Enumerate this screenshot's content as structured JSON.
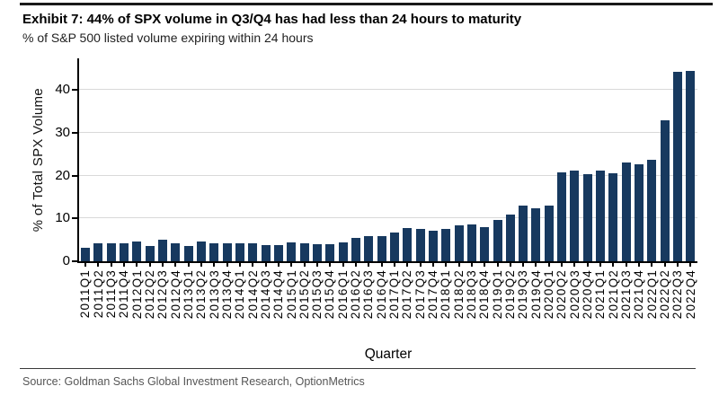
{
  "header": {
    "title": "Exhibit 7: 44% of SPX volume in Q3/Q4 has had less than 24 hours to maturity",
    "subtitle": "% of S&P 500 listed volume expiring within 24 hours"
  },
  "footer": {
    "source": "Source: Goldman Sachs Global Investment Research, OptionMetrics"
  },
  "chart_data": {
    "type": "bar",
    "title": "Exhibit 7: 44% of SPX volume in Q3/Q4 has had less than 24 hours to maturity",
    "subtitle": "% of S&P 500 listed volume expiring within 24 hours",
    "xlabel": "Quarter",
    "ylabel": "% of Total SPX Volume",
    "ylim": [
      0,
      47
    ],
    "yticks": [
      0,
      10,
      20,
      30,
      40
    ],
    "grid": "horizontal",
    "legend": "none",
    "bar_color": "#17395f",
    "categories": [
      "2011Q1",
      "2011Q2",
      "2011Q3",
      "2011Q4",
      "2012Q1",
      "2012Q2",
      "2012Q3",
      "2012Q4",
      "2013Q1",
      "2013Q2",
      "2013Q3",
      "2013Q4",
      "2014Q1",
      "2014Q2",
      "2014Q3",
      "2014Q4",
      "2015Q1",
      "2015Q2",
      "2015Q3",
      "2015Q4",
      "2016Q1",
      "2016Q2",
      "2016Q3",
      "2016Q4",
      "2017Q1",
      "2017Q2",
      "2017Q3",
      "2017Q4",
      "2018Q1",
      "2018Q2",
      "2018Q3",
      "2018Q4",
      "2019Q1",
      "2019Q2",
      "2019Q3",
      "2019Q4",
      "2020Q1",
      "2020Q2",
      "2020Q3",
      "2020Q4",
      "2021Q1",
      "2021Q2",
      "2021Q3",
      "2021Q4",
      "2022Q1",
      "2022Q2",
      "2022Q3",
      "2022Q4"
    ],
    "values": [
      3.2,
      4.1,
      4.1,
      4.2,
      4.6,
      3.6,
      5.0,
      4.2,
      3.5,
      4.6,
      4.1,
      4.2,
      4.2,
      4.1,
      3.8,
      3.8,
      4.4,
      4.3,
      3.9,
      4.0,
      4.5,
      5.5,
      5.8,
      5.9,
      6.8,
      7.8,
      7.6,
      7.1,
      7.5,
      8.3,
      8.6,
      8.0,
      9.6,
      10.8,
      13.1,
      12.3,
      13.1,
      20.7,
      21.1,
      20.3,
      21.2,
      20.6,
      23.1,
      22.6,
      23.6,
      33.0,
      44.3,
      44.5
    ]
  }
}
